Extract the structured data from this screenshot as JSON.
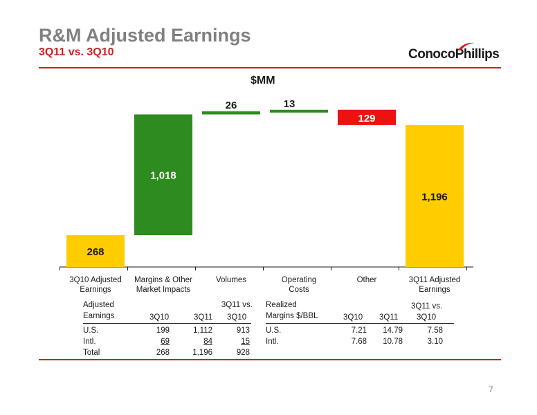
{
  "header": {
    "title": "R&M Adjusted Earnings",
    "subtitle": "3Q11 vs. 3Q10",
    "logo_text": "ConocoPhillips"
  },
  "chart_data": {
    "type": "bar",
    "variant": "waterfall",
    "unit_label": "$MM",
    "categories": [
      "3Q10 Adjusted Earnings",
      "Margins & Other Market Impacts",
      "Volumes",
      "Operating Costs",
      "Other",
      "3Q11 Adjusted Earnings"
    ],
    "category_lines": [
      [
        "3Q10 Adjusted",
        "Earnings"
      ],
      [
        "Margins & Other",
        "Market Impacts"
      ],
      [
        "Volumes"
      ],
      [
        "Operating",
        "Costs"
      ],
      [
        "Other"
      ],
      [
        "3Q11 Adjusted",
        "Earnings"
      ]
    ],
    "values": [
      268,
      1018,
      26,
      13,
      -129,
      1196
    ],
    "value_labels": [
      "268",
      "1,018",
      "26",
      "13",
      "129",
      "1,196"
    ],
    "kinds": [
      "total",
      "increase",
      "increase",
      "increase",
      "decrease",
      "total"
    ],
    "colors": {
      "total": "#ffcc00",
      "increase": "#2e8b1f",
      "decrease": "#ee1111"
    }
  },
  "earnings_table": {
    "header_line1": [
      "Adjusted",
      "",
      "",
      "3Q11 vs."
    ],
    "header_line2": [
      "Earnings",
      "3Q10",
      "3Q11",
      "3Q10"
    ],
    "rows": [
      [
        "U.S.",
        "199",
        "1,112",
        "913"
      ],
      [
        "Intl.",
        "69",
        "84",
        "15"
      ],
      [
        "Total",
        "268",
        "1,196",
        "928"
      ]
    ]
  },
  "margins_table": {
    "header_line1": [
      "Realized",
      "",
      "",
      "3Q11 vs."
    ],
    "header_line2": [
      "Margins $/BBL",
      "3Q10",
      "3Q11",
      "3Q10"
    ],
    "rows": [
      [
        "U.S.",
        "7.21",
        "14.79",
        "7.58"
      ],
      [
        "Intl.",
        "7.68",
        "10.78",
        "3.10"
      ]
    ]
  },
  "page_number": "7"
}
